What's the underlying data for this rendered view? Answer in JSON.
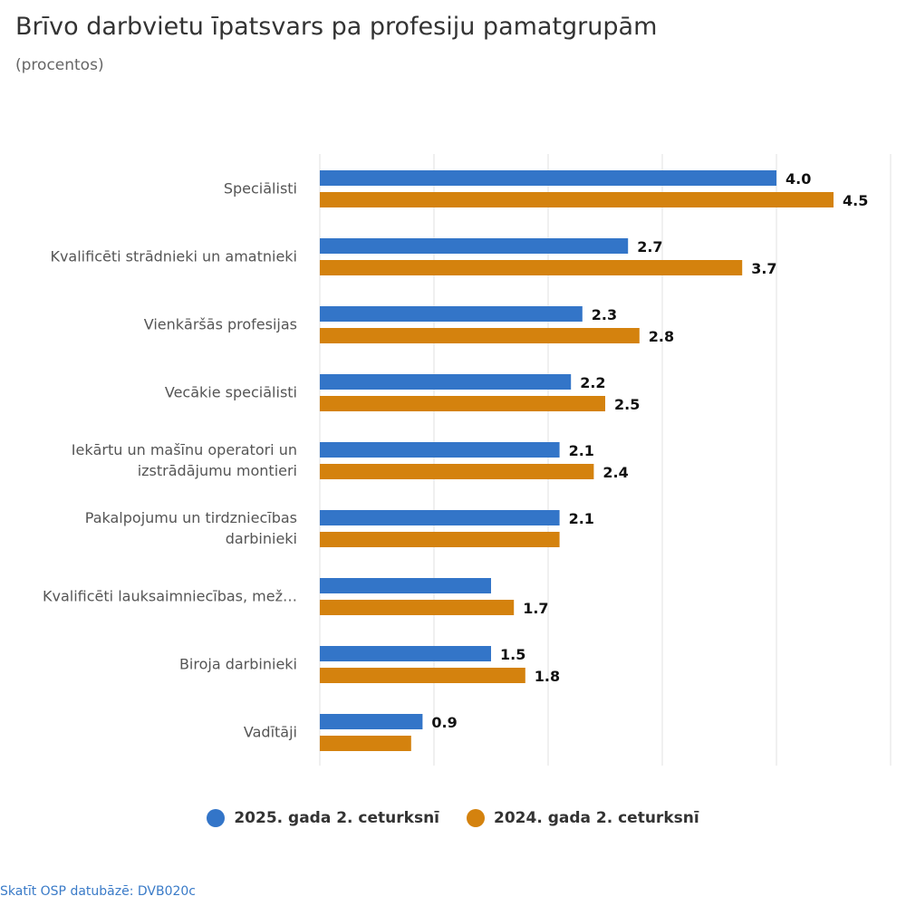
{
  "chart_data": {
    "type": "bar",
    "orientation": "horizontal",
    "title": "Brīvo darbvietu īpatsvars pa profesiju pamatgrupām",
    "subtitle": "(procentos)",
    "categories": [
      "Speciālisti",
      "Kvalificēti strādnieki un amatnieki",
      "Vienkāršās profesijas",
      "Vecākie speciālisti",
      "Iekārtu un mašīnu operatori un izstrādājumu montieri",
      "Pakalpojumu un tirdzniecības darbinieki",
      "Kvalificēti lauksaimniecības, mež…",
      "Biroja darbinieki",
      "Vadītāji"
    ],
    "category_lines": [
      [
        "Speciālisti"
      ],
      [
        "Kvalificēti strādnieki un amatnieki"
      ],
      [
        "Vienkāršās profesijas"
      ],
      [
        "Vecākie speciālisti"
      ],
      [
        "Iekārtu un mašīnu operatori un",
        "izstrādājumu montieri"
      ],
      [
        "Pakalpojumu un tirdzniecības",
        "darbinieki"
      ],
      [
        "Kvalificēti lauksaimniecības, mež…"
      ],
      [
        "Biroja darbinieki"
      ],
      [
        "Vadītāji"
      ]
    ],
    "series": [
      {
        "name": "2025. gada 2. ceturksnī",
        "color": "#3375c8",
        "values": [
          4.0,
          2.7,
          2.3,
          2.2,
          2.1,
          2.1,
          1.5,
          1.5,
          0.9
        ],
        "labels": [
          "4.0",
          "2.7",
          "2.3",
          "2.2",
          "2.1",
          "2.1",
          "",
          "1.5",
          "0.9"
        ]
      },
      {
        "name": "2024. gada 2. ceturksnī",
        "color": "#d4820e",
        "values": [
          4.5,
          3.7,
          2.8,
          2.5,
          2.4,
          2.1,
          1.7,
          1.8,
          0.8
        ],
        "labels": [
          "4.5",
          "3.7",
          "2.8",
          "2.5",
          "2.4",
          "",
          "1.7",
          "1.8",
          ""
        ]
      }
    ],
    "xlim": [
      0,
      5
    ],
    "grid": true,
    "legend_position": "bottom"
  },
  "source_text": "Skatīt OSP datubāzē: DVB020c"
}
